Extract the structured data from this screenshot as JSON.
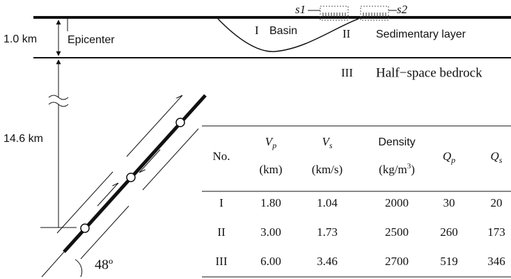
{
  "diagram": {
    "receivers": [
      "s1",
      "s2"
    ],
    "layers": [
      {
        "number": "I",
        "name": "Basin"
      },
      {
        "number": "II",
        "name": "Sedimentary layer"
      },
      {
        "number": "III",
        "name": "Half−space bedrock"
      }
    ],
    "depth_top": "1.0 km",
    "epicenter": "Epicenter",
    "depth_fault": "14.6 km",
    "dip": "48º"
  },
  "table": {
    "header": [
      {
        "name": "No."
      },
      {
        "name": "V",
        "sub": "p",
        "unit": "(km)"
      },
      {
        "name": "V",
        "sub": "s",
        "unit": "(km/s)"
      },
      {
        "name": "Density",
        "unit_base": "(kg/m",
        "unit_sup": "3",
        "unit_end": ")"
      },
      {
        "name": "Q",
        "sub": "p"
      },
      {
        "name": "Q",
        "sub": "s"
      }
    ],
    "rows": [
      [
        "I",
        "1.80",
        "1.04",
        "2000",
        "30",
        "20"
      ],
      [
        "II",
        "3.00",
        "1.73",
        "2500",
        "260",
        "173"
      ],
      [
        "III",
        "6.00",
        "3.46",
        "2700",
        "519",
        "346"
      ]
    ]
  }
}
